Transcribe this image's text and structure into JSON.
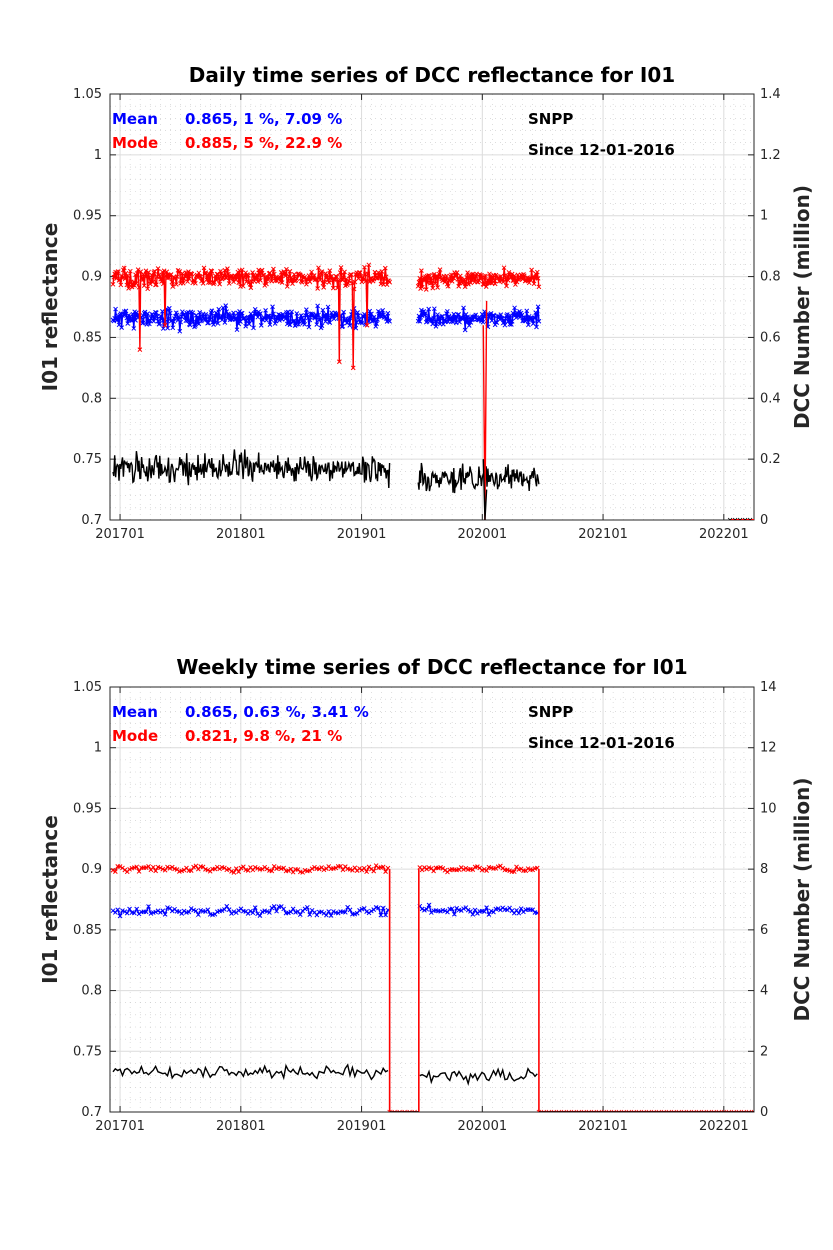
{
  "chart_data": [
    {
      "type": "line",
      "title": "Daily time series of DCC reflectance for I01",
      "ylabel": "I01 reflectance",
      "y2label": "DCC Number (million)",
      "x_tick_labels": [
        "201701",
        "201801",
        "201901",
        "202001",
        "202101",
        "202201"
      ],
      "x_tick_dates": [
        "2017-01",
        "2018-01",
        "2019-01",
        "2020-01",
        "2021-01",
        "2022-01"
      ],
      "xlim": [
        "2016-12",
        "2022-04"
      ],
      "ylim": [
        0.7,
        1.05
      ],
      "y_tick_labels": [
        "0.7",
        "0.75",
        "0.8",
        "0.85",
        "0.9",
        "0.95",
        "1",
        "1.05"
      ],
      "y2lim": [
        0,
        1.4
      ],
      "y2_tick_labels": [
        "0",
        "0.2",
        "0.4",
        "0.6",
        "0.8",
        "1",
        "1.2",
        "1.4"
      ],
      "grid": true,
      "annotations": {
        "mean_label": "Mean",
        "mean_stats": "0.865, 1 %, 7.09 %",
        "mode_label": "Mode",
        "mode_stats": "0.885, 5 %, 22.9 %",
        "satellite": "SNPP",
        "since": "Since 12-01-2016"
      },
      "colors": {
        "mean": "#0000ff",
        "mode": "#ff0000",
        "count": "#000000"
      },
      "series": [
        {
          "key": "mean",
          "axis": "left",
          "segments": [
            {
              "start": "2016-12-10",
              "end": "2019-03-25",
              "level": 0.866,
              "noise": 0.012,
              "count": 320,
              "seed": 11
            },
            {
              "start": "2019-06-20",
              "end": "2020-06-20",
              "level": 0.866,
              "noise": 0.011,
              "count": 150,
              "seed": 12
            }
          ]
        },
        {
          "key": "mode",
          "axis": "left",
          "segments": [
            {
              "start": "2016-12-10",
              "end": "2019-03-25",
              "level": 0.899,
              "noise": 0.011,
              "count": 320,
              "seed": 21
            },
            {
              "start": "2019-06-20",
              "end": "2020-06-20",
              "level": 0.898,
              "noise": 0.01,
              "count": 150,
              "seed": 22
            }
          ],
          "spikes": [
            [
              0.1,
              0.84
            ],
            [
              0.19,
              0.86
            ],
            [
              0.82,
              0.83
            ],
            [
              0.87,
              0.825
            ],
            [
              0.92,
              0.86
            ]
          ],
          "drop": {
            "start": "2020-01-04",
            "end": "2020-01-14",
            "value": 0.7
          },
          "tail": {
            "start": "2022-01-20",
            "end": "2022-04-01",
            "value": 0.7
          }
        },
        {
          "key": "count",
          "axis": "right",
          "segments": [
            {
              "start": "2016-12-10",
              "end": "2019-03-25",
              "level": 0.17,
              "noise": 0.07,
              "count": 320,
              "seed": 31
            },
            {
              "start": "2019-06-20",
              "end": "2020-06-20",
              "level": 0.14,
              "noise": 0.06,
              "count": 150,
              "seed": 32
            }
          ]
        }
      ]
    },
    {
      "type": "line",
      "title": "Weekly time series of DCC reflectance for I01",
      "ylabel": "I01 reflectance",
      "y2label": "DCC Number (million)",
      "x_tick_labels": [
        "201701",
        "201801",
        "201901",
        "202001",
        "202101",
        "202201"
      ],
      "x_tick_dates": [
        "2017-01",
        "2018-01",
        "2019-01",
        "2020-01",
        "2021-01",
        "2022-01"
      ],
      "xlim": [
        "2016-12",
        "2022-04"
      ],
      "ylim": [
        0.7,
        1.05
      ],
      "y_tick_labels": [
        "0.7",
        "0.75",
        "0.8",
        "0.85",
        "0.9",
        "0.95",
        "1",
        "1.05"
      ],
      "y2lim": [
        0,
        14
      ],
      "y2_tick_labels": [
        "0",
        "2",
        "4",
        "6",
        "8",
        "10",
        "12",
        "14"
      ],
      "grid": true,
      "annotations": {
        "mean_label": "Mean",
        "mean_stats": "0.865, 0.63 %, 3.41 %",
        "mode_label": "Mode",
        "mode_stats": "0.821, 9.8 %, 21 %",
        "satellite": "SNPP",
        "since": "Since 12-01-2016"
      },
      "colors": {
        "mean": "#0000ff",
        "mode": "#ff0000",
        "count": "#000000"
      },
      "series": [
        {
          "key": "mean",
          "axis": "left",
          "segments": [
            {
              "start": "2016-12-10",
              "end": "2019-03-20",
              "level": 0.865,
              "noise": 0.006,
              "count": 117,
              "seed": 41
            },
            {
              "start": "2019-06-25",
              "end": "2020-06-15",
              "level": 0.866,
              "noise": 0.005,
              "count": 52,
              "seed": 42
            }
          ]
        },
        {
          "key": "mode",
          "axis": "left",
          "segments": [
            {
              "start": "2016-12-10",
              "end": "2019-03-20",
              "level": 0.9,
              "noise": 0.004,
              "count": 117,
              "seed": 51
            },
            {
              "start": "2019-06-25",
              "end": "2020-06-15",
              "level": 0.9,
              "noise": 0.004,
              "count": 52,
              "seed": 52
            }
          ],
          "gaps": [
            {
              "from": "2019-03-25",
              "to": "2019-06-22",
              "value": 0.7
            },
            {
              "from": "2020-06-20",
              "to": "2022-04-01",
              "value": 0.7
            }
          ]
        },
        {
          "key": "count",
          "axis": "right",
          "segments": [
            {
              "start": "2016-12-10",
              "end": "2019-03-20",
              "level": 1.3,
              "noise": 0.3,
              "count": 117,
              "seed": 61
            },
            {
              "start": "2019-06-25",
              "end": "2020-06-15",
              "level": 1.2,
              "noise": 0.3,
              "count": 52,
              "seed": 62
            }
          ]
        }
      ]
    }
  ]
}
